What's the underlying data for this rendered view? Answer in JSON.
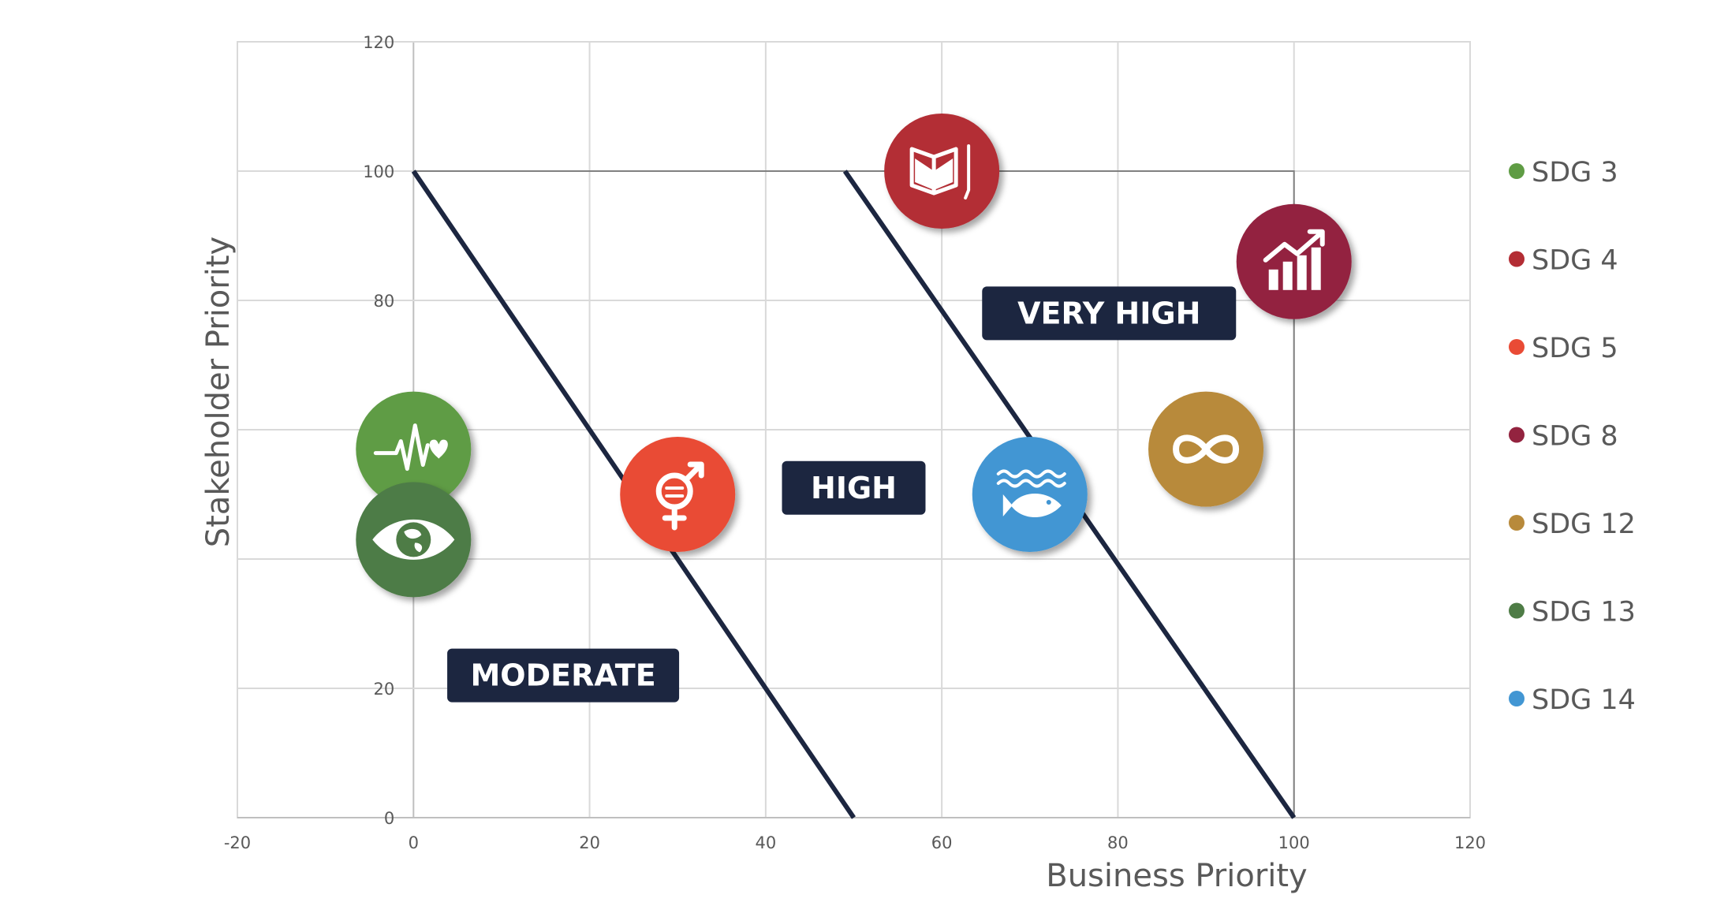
{
  "chart_data": {
    "type": "scatter",
    "title": "",
    "xlabel": "Business Priority",
    "ylabel": "Stakeholder Priority",
    "xlim": [
      -20,
      120
    ],
    "ylim": [
      0,
      120
    ],
    "x_ticks": [
      -20,
      0,
      20,
      40,
      60,
      80,
      100,
      120
    ],
    "y_ticks": [
      0,
      20,
      40,
      60,
      80,
      100,
      120
    ],
    "grid": true,
    "legend_position": "right",
    "series": [
      {
        "name": "SDG 3",
        "x": 0,
        "y": 57,
        "color": "#5f9c44",
        "icon": "heartbeat-icon"
      },
      {
        "name": "SDG 4",
        "x": 60,
        "y": 100,
        "color": "#b32d34",
        "icon": "book-icon"
      },
      {
        "name": "SDG 5",
        "x": 30,
        "y": 50,
        "color": "#e94b35",
        "icon": "gender-equality-icon"
      },
      {
        "name": "SDG 8",
        "x": 100,
        "y": 86,
        "color": "#93233f",
        "icon": "growth-chart-icon"
      },
      {
        "name": "SDG 12",
        "x": 90,
        "y": 57,
        "color": "#b88a3b",
        "icon": "infinity-icon"
      },
      {
        "name": "SDG 13",
        "x": 0,
        "y": 43,
        "color": "#4e7c46",
        "icon": "eye-globe-icon"
      },
      {
        "name": "SDG 14",
        "x": 70,
        "y": 50,
        "color": "#4296d3",
        "icon": "fish-icon"
      }
    ],
    "threshold_lines": [
      {
        "from": [
          0,
          100
        ],
        "to": [
          50,
          0
        ],
        "color": "#1c2640"
      },
      {
        "from": [
          49,
          100
        ],
        "to": [
          100,
          0
        ],
        "color": "#1c2640"
      }
    ],
    "boundary": {
      "points": [
        [
          0,
          100
        ],
        [
          100,
          100
        ],
        [
          100,
          0
        ]
      ],
      "color": "#808080"
    },
    "annotations": [
      {
        "text": "MODERATE",
        "x": 17,
        "y": 22
      },
      {
        "text": "HIGH",
        "x": 50,
        "y": 51
      },
      {
        "text": "VERY HIGH",
        "x": 79,
        "y": 78
      }
    ],
    "annotation_color": "#1c2640"
  }
}
